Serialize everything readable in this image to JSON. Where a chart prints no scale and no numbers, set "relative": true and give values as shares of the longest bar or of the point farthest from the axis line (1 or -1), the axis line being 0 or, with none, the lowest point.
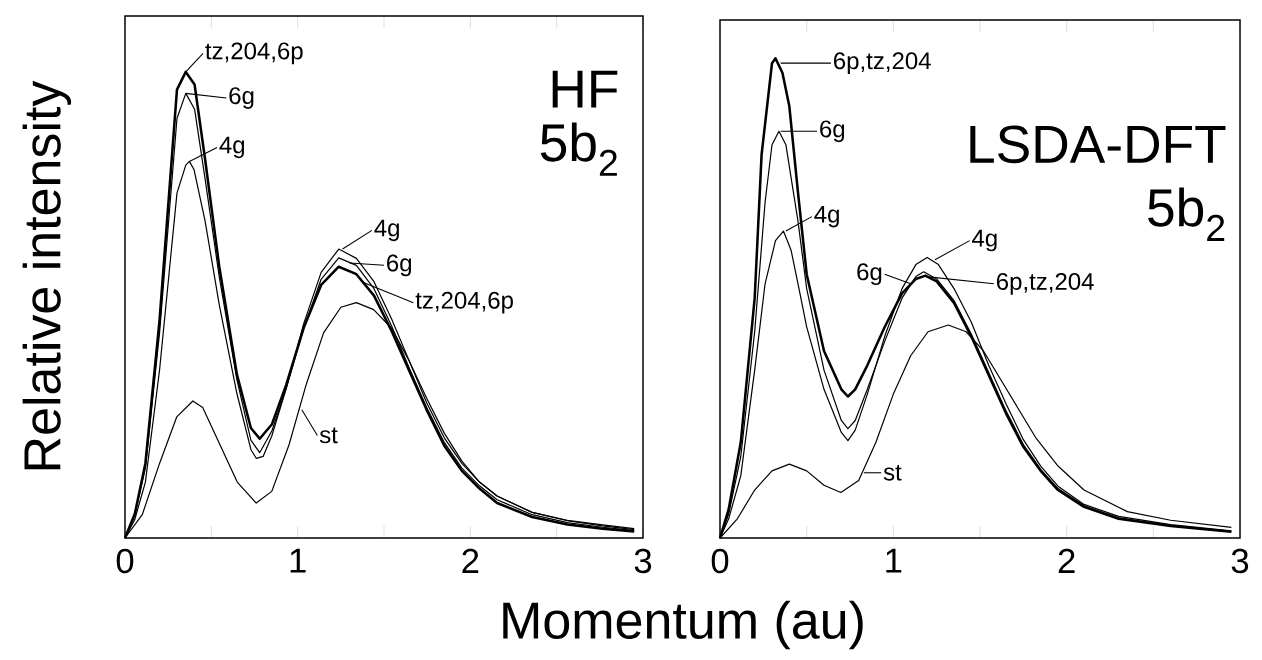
{
  "chart_data": [
    {
      "type": "line",
      "relative": true,
      "ylabel": "Relative intensity",
      "xlabel": "Momentum (au)",
      "xlim": [
        0,
        3
      ],
      "xticks": [
        0,
        {
          "value": 0.5,
          "label": null
        },
        1,
        {
          "value": 1.5,
          "label": null
        },
        2,
        {
          "value": 2.5,
          "label": null
        },
        3
      ],
      "annotations": [
        "HF",
        "5b$_{2}$",
        {
          "text": "tz,204,6p",
          "x": 0.352,
          "y": 1.0
        },
        {
          "text": "6g",
          "x": 0.352,
          "y": 0.954
        },
        {
          "text": "4g",
          "x": 0.373,
          "y": 0.808
        },
        {
          "text": "4g",
          "x": 1.26,
          "y": 0.62
        },
        {
          "text": "6g",
          "x": 1.3,
          "y": 0.59
        },
        {
          "text": "tz,204,6p",
          "x": 1.37,
          "y": 0.55
        },
        {
          "text": "st",
          "x": 1.024,
          "y": 0.275
        }
      ],
      "series": [
        {
          "color": "#000000",
          "x": [
            0,
            0.057,
            0.118,
            0.2,
            0.301,
            0.352,
            0.403,
            0.464,
            0.546,
            0.648,
            0.729,
            0.78,
            0.851,
            0.933,
            1.035,
            1.136,
            1.238,
            1.34,
            1.442,
            1.544,
            1.646,
            1.747,
            1.849,
            1.951,
            2.053,
            2.155,
            2.358,
            2.562,
            2.766,
            2.949
          ],
          "values": [
            0,
            0.052,
            0.16,
            0.467,
            0.962,
            1,
            0.973,
            0.812,
            0.582,
            0.351,
            0.236,
            0.213,
            0.244,
            0.328,
            0.451,
            0.543,
            0.582,
            0.566,
            0.52,
            0.444,
            0.359,
            0.275,
            0.198,
            0.144,
            0.106,
            0.075,
            0.045,
            0.029,
            0.02,
            0.014
          ]
        },
        {
          "color": "#000000",
          "x": [
            0,
            0.057,
            0.118,
            0.2,
            0.301,
            0.352,
            0.403,
            0.464,
            0.546,
            0.648,
            0.729,
            0.78,
            0.851,
            0.933,
            1.035,
            1.136,
            1.238,
            1.34,
            1.442,
            1.544,
            1.646,
            1.747,
            1.849,
            1.951,
            2.053,
            2.155,
            2.358,
            2.562,
            2.766,
            2.949
          ],
          "values": [
            0,
            0.05,
            0.15,
            0.44,
            0.9,
            0.954,
            0.92,
            0.77,
            0.56,
            0.34,
            0.21,
            0.183,
            0.23,
            0.32,
            0.45,
            0.555,
            0.601,
            0.585,
            0.535,
            0.455,
            0.365,
            0.28,
            0.205,
            0.15,
            0.112,
            0.082,
            0.05,
            0.033,
            0.023,
            0.016
          ]
        },
        {
          "color": "#000000",
          "x": [
            0,
            0.057,
            0.118,
            0.2,
            0.301,
            0.352,
            0.373,
            0.4,
            0.464,
            0.546,
            0.648,
            0.729,
            0.76,
            0.8,
            0.851,
            0.933,
            1.035,
            1.136,
            1.238,
            1.34,
            1.442,
            1.544,
            1.646,
            1.747,
            1.849,
            1.951,
            2.053,
            2.155,
            2.358,
            2.562,
            2.766,
            2.949
          ],
          "values": [
            0,
            0.04,
            0.12,
            0.36,
            0.74,
            0.8,
            0.808,
            0.79,
            0.68,
            0.5,
            0.31,
            0.19,
            0.171,
            0.175,
            0.22,
            0.32,
            0.46,
            0.57,
            0.62,
            0.6,
            0.55,
            0.47,
            0.38,
            0.29,
            0.215,
            0.16,
            0.12,
            0.09,
            0.055,
            0.037,
            0.026,
            0.018
          ]
        },
        {
          "color": "#000000",
          "x": [
            0,
            0.1,
            0.2,
            0.3,
            0.393,
            0.45,
            0.55,
            0.65,
            0.76,
            0.85,
            0.95,
            1.05,
            1.15,
            1.25,
            1.34,
            1.44,
            1.544,
            1.646,
            1.747,
            1.849,
            1.951,
            2.053,
            2.155,
            2.358,
            2.562,
            2.766,
            2.949
          ],
          "values": [
            0,
            0.05,
            0.16,
            0.26,
            0.294,
            0.28,
            0.2,
            0.12,
            0.075,
            0.1,
            0.2,
            0.33,
            0.44,
            0.495,
            0.505,
            0.49,
            0.45,
            0.38,
            0.3,
            0.225,
            0.165,
            0.12,
            0.09,
            0.055,
            0.038,
            0.028,
            0.02
          ]
        }
      ]
    },
    {
      "type": "line",
      "relative": true,
      "xlim": [
        0,
        3
      ],
      "xticks": [
        0,
        {
          "value": 0.5,
          "label": null
        },
        1,
        {
          "value": 1.5,
          "label": null
        },
        2,
        {
          "value": 2.5,
          "label": null
        },
        3
      ],
      "annotations": [
        "LSDA-DFT",
        "5b$_{2}$",
        {
          "text": "6p,tz,204",
          "x": 0.35,
          "y": 0.99
        },
        {
          "text": "6g",
          "x": 0.35,
          "y": 0.848
        },
        {
          "text": "4g",
          "x": 0.38,
          "y": 0.64
        },
        {
          "text": "4g",
          "x": 1.24,
          "y": 0.58
        },
        {
          "text": "6g",
          "x": 1.1,
          "y": 0.53
        },
        {
          "text": "6p,tz,204",
          "x": 1.19,
          "y": 0.545
        },
        {
          "text": "st",
          "x": 0.83,
          "y": 0.136
        }
      ],
      "series": [
        {
          "color": "#000000",
          "x": [
            0,
            0.05,
            0.12,
            0.2,
            0.24,
            0.3,
            0.32,
            0.36,
            0.4,
            0.45,
            0.5,
            0.6,
            0.7,
            0.738,
            0.78,
            0.85,
            0.95,
            1.05,
            1.13,
            1.185,
            1.25,
            1.35,
            1.45,
            1.55,
            1.65,
            1.75,
            1.85,
            1.95,
            2.1,
            2.3,
            2.6,
            2.95
          ],
          "values": [
            0,
            0.06,
            0.2,
            0.5,
            0.8,
            0.99,
            1,
            0.97,
            0.9,
            0.72,
            0.55,
            0.39,
            0.31,
            0.295,
            0.31,
            0.36,
            0.44,
            0.51,
            0.54,
            0.547,
            0.535,
            0.49,
            0.42,
            0.34,
            0.26,
            0.19,
            0.14,
            0.1,
            0.065,
            0.04,
            0.025,
            0.013
          ]
        },
        {
          "color": "#000000",
          "x": [
            0,
            0.05,
            0.12,
            0.2,
            0.26,
            0.3,
            0.34,
            0.38,
            0.45,
            0.5,
            0.6,
            0.7,
            0.738,
            0.78,
            0.85,
            0.95,
            1.05,
            1.13,
            1.175,
            1.25,
            1.35,
            1.45,
            1.55,
            1.65,
            1.75,
            1.85,
            1.95,
            2.1,
            2.3,
            2.6,
            2.95
          ],
          "values": [
            0,
            0.05,
            0.17,
            0.43,
            0.7,
            0.82,
            0.848,
            0.82,
            0.66,
            0.52,
            0.35,
            0.245,
            0.228,
            0.245,
            0.31,
            0.41,
            0.5,
            0.545,
            0.555,
            0.54,
            0.495,
            0.425,
            0.345,
            0.265,
            0.195,
            0.143,
            0.103,
            0.067,
            0.042,
            0.026,
            0.014
          ]
        },
        {
          "color": "#000000",
          "x": [
            0,
            0.05,
            0.12,
            0.2,
            0.26,
            0.32,
            0.366,
            0.41,
            0.45,
            0.5,
            0.6,
            0.7,
            0.738,
            0.78,
            0.85,
            0.95,
            1.05,
            1.13,
            1.195,
            1.26,
            1.35,
            1.45,
            1.55,
            1.65,
            1.75,
            1.85,
            1.95,
            2.1,
            2.3,
            2.6,
            2.95
          ],
          "values": [
            0,
            0.04,
            0.13,
            0.35,
            0.53,
            0.62,
            0.64,
            0.6,
            0.53,
            0.44,
            0.31,
            0.22,
            0.203,
            0.225,
            0.3,
            0.42,
            0.52,
            0.57,
            0.585,
            0.57,
            0.52,
            0.45,
            0.36,
            0.28,
            0.205,
            0.15,
            0.108,
            0.07,
            0.045,
            0.028,
            0.015
          ]
        },
        {
          "color": "#000000",
          "x": [
            0,
            0.1,
            0.2,
            0.3,
            0.4,
            0.5,
            0.6,
            0.697,
            0.8,
            0.9,
            1.0,
            1.1,
            1.2,
            1.317,
            1.42,
            1.52,
            1.62,
            1.72,
            1.82,
            1.95,
            2.1,
            2.35,
            2.6,
            2.95
          ],
          "values": [
            0,
            0.04,
            0.1,
            0.14,
            0.154,
            0.14,
            0.11,
            0.095,
            0.12,
            0.2,
            0.3,
            0.38,
            0.43,
            0.444,
            0.43,
            0.39,
            0.33,
            0.27,
            0.21,
            0.15,
            0.1,
            0.055,
            0.037,
            0.022
          ]
        }
      ]
    }
  ]
}
